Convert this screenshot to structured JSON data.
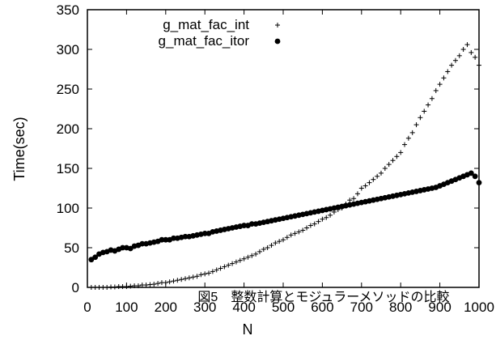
{
  "chart_data": {
    "type": "scatter",
    "title": "",
    "xlabel": "N",
    "ylabel": "Time(sec)",
    "caption": "図5　整数計算とモジュラーメソッドの比較",
    "xlim": [
      0,
      1000
    ],
    "ylim": [
      0,
      350
    ],
    "xticks": [
      0,
      100,
      200,
      300,
      400,
      500,
      600,
      700,
      800,
      900,
      1000
    ],
    "yticks": [
      0,
      50,
      100,
      150,
      200,
      250,
      300,
      350
    ],
    "grid": false,
    "legend": "top-left",
    "series": [
      {
        "name": "g_mat_fac_int",
        "marker": "plus",
        "color": "#000000",
        "x": [
          10,
          20,
          30,
          40,
          50,
          60,
          70,
          80,
          90,
          100,
          110,
          120,
          130,
          140,
          150,
          160,
          170,
          180,
          190,
          200,
          210,
          220,
          230,
          240,
          250,
          260,
          270,
          280,
          290,
          300,
          310,
          320,
          330,
          340,
          350,
          360,
          370,
          380,
          390,
          400,
          410,
          420,
          430,
          440,
          450,
          460,
          470,
          480,
          490,
          500,
          510,
          520,
          530,
          540,
          550,
          560,
          570,
          580,
          590,
          600,
          610,
          620,
          630,
          640,
          650,
          660,
          670,
          680,
          690,
          700,
          710,
          720,
          730,
          740,
          750,
          760,
          770,
          780,
          790,
          800,
          810,
          820,
          830,
          840,
          850,
          860,
          870,
          880,
          890,
          900,
          910,
          920,
          930,
          940,
          950,
          960,
          970,
          980,
          990,
          1000
        ],
        "y": [
          0,
          0,
          0,
          0,
          0,
          0.5,
          0.5,
          1,
          1,
          1,
          1.5,
          2,
          2,
          3,
          3,
          3.5,
          4,
          5,
          6,
          6,
          7,
          8,
          9,
          10,
          11,
          12,
          13,
          14,
          16,
          17,
          18,
          20,
          22,
          24,
          26,
          28,
          30,
          32,
          34,
          36,
          38,
          40,
          42,
          45,
          48,
          50,
          53,
          56,
          58,
          60,
          63,
          66,
          68,
          70,
          72,
          75,
          78,
          80,
          83,
          86,
          88,
          91,
          95,
          98,
          100,
          105,
          110,
          112,
          118,
          125,
          128,
          132,
          136,
          140,
          144,
          150,
          155,
          160,
          165,
          170,
          180,
          188,
          195,
          205,
          214,
          222,
          230,
          238,
          248,
          256,
          264,
          272,
          280,
          286,
          292,
          300,
          306,
          296,
          290,
          280
        ]
      },
      {
        "name": "g_mat_fac_itor",
        "marker": "dot",
        "color": "#000000",
        "x": [
          10,
          20,
          30,
          40,
          50,
          60,
          70,
          80,
          90,
          100,
          110,
          120,
          130,
          140,
          150,
          160,
          170,
          180,
          190,
          200,
          210,
          220,
          230,
          240,
          250,
          260,
          270,
          280,
          290,
          300,
          310,
          320,
          330,
          340,
          350,
          360,
          370,
          380,
          390,
          400,
          410,
          420,
          430,
          440,
          450,
          460,
          470,
          480,
          490,
          500,
          510,
          520,
          530,
          540,
          550,
          560,
          570,
          580,
          590,
          600,
          610,
          620,
          630,
          640,
          650,
          660,
          670,
          680,
          690,
          700,
          710,
          720,
          730,
          740,
          750,
          760,
          770,
          780,
          790,
          800,
          810,
          820,
          830,
          840,
          850,
          860,
          870,
          880,
          890,
          900,
          910,
          920,
          930,
          940,
          950,
          960,
          970,
          980,
          990,
          1000
        ],
        "y": [
          35,
          38,
          42,
          44,
          45,
          47,
          46,
          48,
          50,
          50,
          49,
          52,
          53,
          55,
          55,
          56,
          57,
          58,
          60,
          60,
          60,
          62,
          62,
          63,
          64,
          64,
          65,
          66,
          67,
          68,
          68,
          70,
          71,
          72,
          73,
          74,
          75,
          76,
          77,
          78,
          78,
          80,
          80,
          81,
          82,
          83,
          84,
          85,
          86,
          87,
          88,
          89,
          90,
          91,
          92,
          93,
          94,
          95,
          96,
          97,
          98,
          99,
          100,
          101,
          102,
          103,
          104,
          105,
          106,
          107,
          108,
          109,
          110,
          111,
          112,
          113,
          114,
          115,
          116,
          117,
          118,
          119,
          120,
          121,
          122,
          123,
          124,
          125,
          126,
          128,
          130,
          132,
          134,
          136,
          138,
          140,
          142,
          144,
          140,
          132
        ]
      }
    ]
  }
}
